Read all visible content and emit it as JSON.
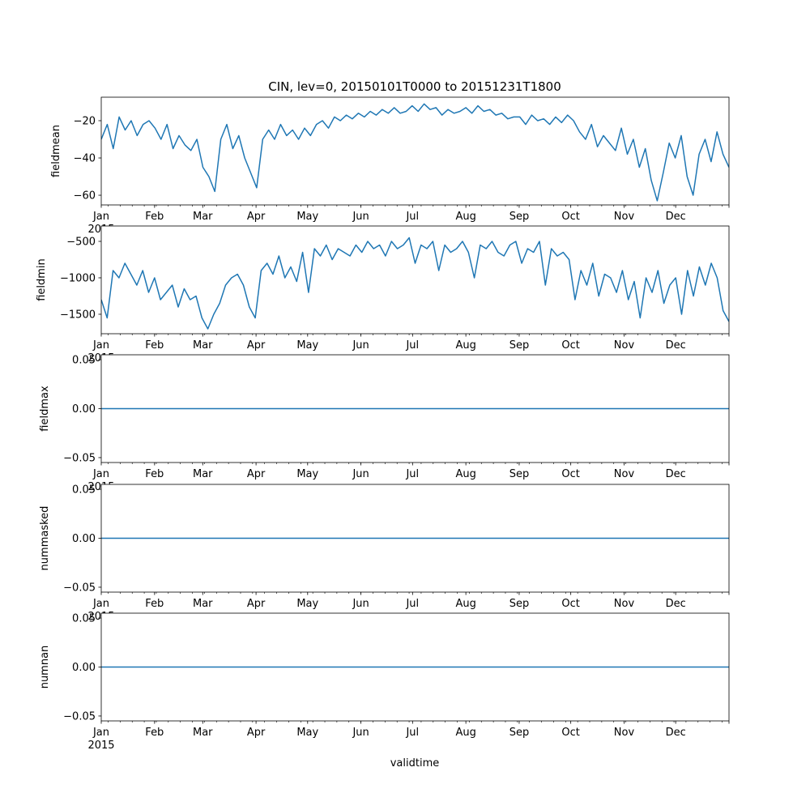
{
  "chart_data": {
    "type": "line",
    "title": "CIN, lev=0, 20150101T0000 to 20151231T1800",
    "xlabel": "validtime",
    "year_label": "2015",
    "x_tick_labels": [
      "Jan",
      "Feb",
      "Mar",
      "Apr",
      "May",
      "Jun",
      "Jul",
      "Aug",
      "Sep",
      "Oct",
      "Nov",
      "Dec"
    ],
    "x_tick_days": [
      0,
      31,
      59,
      90,
      120,
      151,
      181,
      212,
      243,
      273,
      304,
      334
    ],
    "xlim_days": [
      0,
      365
    ],
    "line_color": "#1f77b4",
    "panels": [
      {
        "ylabel": "fieldmean",
        "ylim": [
          -65.2,
          -7.4
        ],
        "yticks": [
          -20,
          -40,
          -60
        ],
        "ytick_labels": [
          "−20",
          "−40",
          "−60"
        ],
        "values": [
          -30,
          -22,
          -35,
          -18,
          -25,
          -20,
          -28,
          -22,
          -20,
          -24,
          -30,
          -22,
          -35,
          -28,
          -33,
          -36,
          -30,
          -45,
          -50,
          -58,
          -30,
          -22,
          -35,
          -28,
          -40,
          -48,
          -56,
          -30,
          -25,
          -30,
          -22,
          -28,
          -25,
          -30,
          -24,
          -28,
          -22,
          -20,
          -24,
          -18,
          -20,
          -17,
          -19,
          -16,
          -18,
          -15,
          -17,
          -14,
          -16,
          -13,
          -16,
          -15,
          -12,
          -15,
          -11,
          -14,
          -13,
          -17,
          -14,
          -16,
          -15,
          -13,
          -16,
          -12,
          -15,
          -14,
          -17,
          -16,
          -19,
          -18,
          -18,
          -22,
          -17,
          -20,
          -19,
          -22,
          -18,
          -21,
          -17,
          -20,
          -26,
          -30,
          -22,
          -34,
          -28,
          -32,
          -36,
          -24,
          -38,
          -30,
          -45,
          -35,
          -52,
          -63,
          -48,
          -32,
          -40,
          -28,
          -50,
          -60,
          -38,
          -30,
          -42,
          -26,
          -38,
          -45
        ]
      },
      {
        "ylabel": "fieldmin",
        "ylim": [
          -1767,
          -289
        ],
        "yticks": [
          -500,
          -1000,
          -1500
        ],
        "ytick_labels": [
          "−500",
          "−1000",
          "−1500"
        ],
        "values": [
          -1300,
          -1550,
          -900,
          -1000,
          -800,
          -950,
          -1100,
          -900,
          -1200,
          -1000,
          -1300,
          -1200,
          -1100,
          -1400,
          -1150,
          -1300,
          -1250,
          -1550,
          -1700,
          -1500,
          -1350,
          -1100,
          -1000,
          -950,
          -1100,
          -1400,
          -1550,
          -900,
          -800,
          -950,
          -700,
          -1000,
          -850,
          -1050,
          -650,
          -1200,
          -600,
          -700,
          -550,
          -750,
          -600,
          -650,
          -700,
          -550,
          -650,
          -500,
          -600,
          -550,
          -700,
          -500,
          -600,
          -550,
          -450,
          -800,
          -550,
          -600,
          -500,
          -900,
          -550,
          -650,
          -600,
          -500,
          -650,
          -1000,
          -550,
          -600,
          -500,
          -650,
          -700,
          -550,
          -500,
          -800,
          -600,
          -650,
          -500,
          -1100,
          -600,
          -700,
          -650,
          -750,
          -1300,
          -900,
          -1100,
          -800,
          -1250,
          -950,
          -1000,
          -1200,
          -900,
          -1300,
          -1050,
          -1550,
          -1000,
          -1200,
          -900,
          -1350,
          -1100,
          -1000,
          -1500,
          -900,
          -1250,
          -850,
          -1100,
          -800,
          -1000,
          -1450,
          -1600
        ]
      },
      {
        "ylabel": "fieldmax",
        "ylim": [
          -0.055,
          0.055
        ],
        "yticks": [
          0.05,
          0.0,
          -0.05
        ],
        "ytick_labels": [
          "0.05",
          "0.00",
          "−0.05"
        ],
        "values": [
          0,
          0
        ]
      },
      {
        "ylabel": "nummasked",
        "ylim": [
          -0.055,
          0.055
        ],
        "yticks": [
          0.05,
          0.0,
          -0.05
        ],
        "ytick_labels": [
          "0.05",
          "0.00",
          "−0.05"
        ],
        "values": [
          0,
          0
        ]
      },
      {
        "ylabel": "numnan",
        "ylim": [
          -0.055,
          0.055
        ],
        "yticks": [
          0.05,
          0.0,
          -0.05
        ],
        "ytick_labels": [
          "0.05",
          "0.00",
          "−0.05"
        ],
        "values": [
          0,
          0
        ]
      }
    ]
  }
}
